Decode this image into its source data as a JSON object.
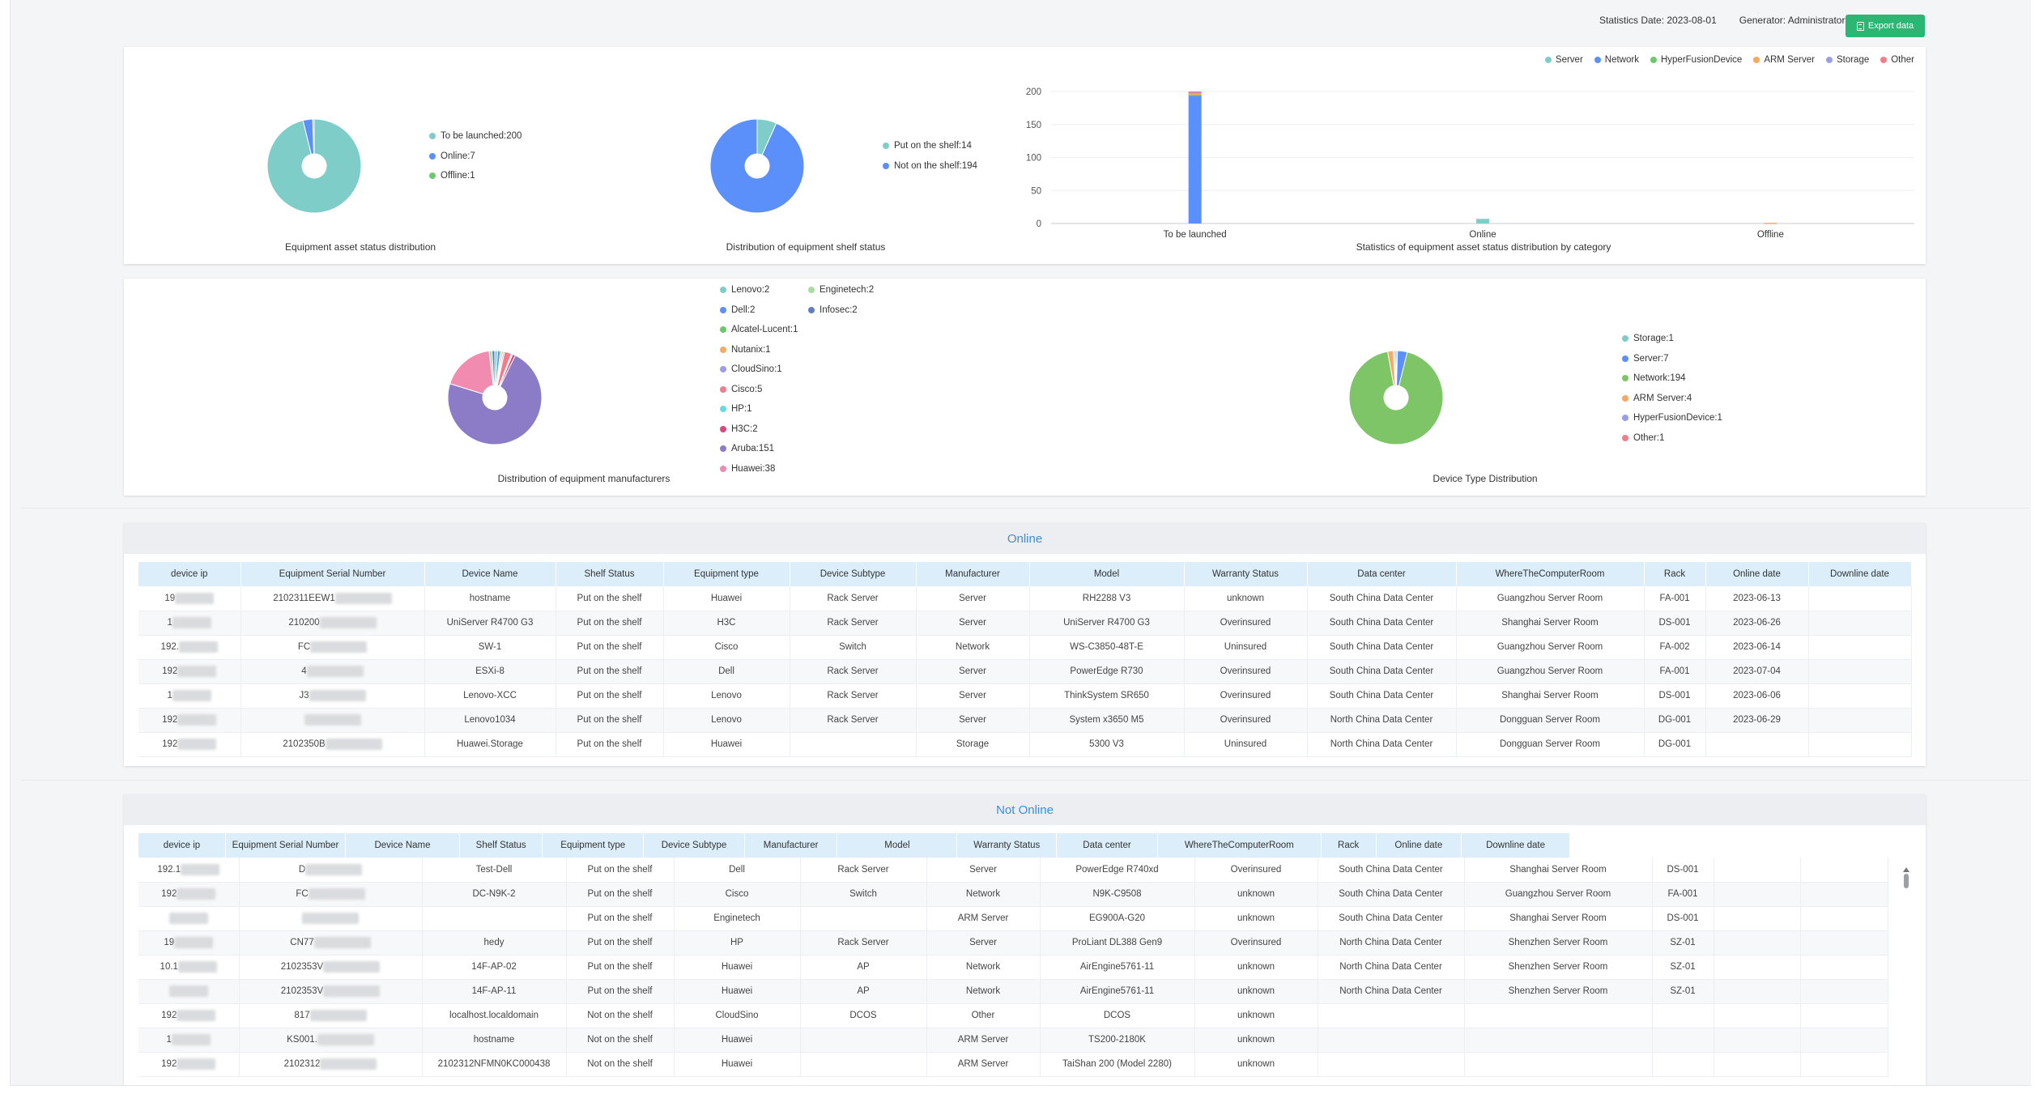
{
  "header": {
    "statistics_date": "Statistics Date: 2023-08-01",
    "generator": "Generator: Administrator",
    "export_label": "Export data"
  },
  "charts": {
    "asset_status": {
      "caption": "Equipment asset status distribution",
      "legend": [
        "To be launched:200",
        "Online:7",
        "Offline:1"
      ]
    },
    "shelf_status": {
      "caption": "Distribution of equipment shelf status",
      "legend": [
        "Put on the shelf:14",
        "Not on the shelf:194"
      ]
    },
    "category_bar": {
      "caption": "Statistics of equipment asset status distribution by category",
      "legend": [
        "Server",
        "Network",
        "HyperFusionDevice",
        "ARM Server",
        "Storage",
        "Other"
      ],
      "y_ticks": [
        "200",
        "150",
        "100",
        "50",
        "0"
      ],
      "x_labels": [
        "To be launched",
        "Online",
        "Offline"
      ]
    },
    "manufacturers": {
      "caption": "Distribution of equipment manufacturers",
      "legend_col1": [
        "Lenovo:2",
        "Dell:2",
        "Alcatel-Lucent:1",
        "Nutanix:1",
        "CloudSino:1",
        "Cisco:5",
        "HP:1",
        "H3C:2",
        "Aruba:151",
        "Huawei:38"
      ],
      "legend_col2": [
        "Enginetech:2",
        "Infosec:2"
      ]
    },
    "device_type": {
      "caption": "Device Type Distribution",
      "legend": [
        "Storage:1",
        "Server:7",
        "Network:194",
        "ARM Server:4",
        "HyperFusionDevice:1",
        "Other:1"
      ]
    }
  },
  "chart_data": [
    {
      "type": "pie",
      "title": "Equipment asset status distribution",
      "categories": [
        "To be launched",
        "Online",
        "Offline"
      ],
      "values": [
        200,
        7,
        1
      ],
      "colors": [
        "#7fcdc8",
        "#5b8ff9",
        "#6dc86d"
      ]
    },
    {
      "type": "pie",
      "title": "Distribution of equipment shelf status",
      "categories": [
        "Put on the shelf",
        "Not on the shelf"
      ],
      "values": [
        14,
        194
      ],
      "colors": [
        "#7fcdc8",
        "#5b8ff9"
      ]
    },
    {
      "type": "bar",
      "title": "Statistics of equipment asset status distribution by category",
      "categories": [
        "To be launched",
        "Online",
        "Offline"
      ],
      "ylim": [
        0,
        200
      ],
      "stacked": true,
      "legend_position": "top-right",
      "series": [
        {
          "name": "Server",
          "values": [
            0,
            7,
            0
          ],
          "color": "#7fcdc8"
        },
        {
          "name": "Network",
          "values": [
            194,
            0,
            0
          ],
          "color": "#5b8ff9"
        },
        {
          "name": "HyperFusionDevice",
          "values": [
            1,
            0,
            0
          ],
          "color": "#6dc86d"
        },
        {
          "name": "ARM Server",
          "values": [
            3,
            0,
            1
          ],
          "color": "#f5a962"
        },
        {
          "name": "Storage",
          "values": [
            1,
            0,
            0
          ],
          "color": "#9a9ee8"
        },
        {
          "name": "Other",
          "values": [
            1,
            0,
            0
          ],
          "color": "#f27c8a"
        }
      ]
    },
    {
      "type": "pie",
      "title": "Distribution of equipment manufacturers",
      "categories": [
        "Lenovo",
        "Dell",
        "Alcatel-Lucent",
        "Nutanix",
        "CloudSino",
        "Cisco",
        "HP",
        "H3C",
        "Aruba",
        "Huawei",
        "Enginetech",
        "Infosec"
      ],
      "values": [
        2,
        2,
        1,
        1,
        1,
        5,
        1,
        2,
        151,
        38,
        2,
        2
      ],
      "colors": [
        "#7fcdc8",
        "#5b8ff9",
        "#6dc86d",
        "#f5a962",
        "#9a9ee8",
        "#f27c8a",
        "#66d9e8",
        "#e0457b",
        "#8c7cc8",
        "#f28bb0",
        "#a8dca0",
        "#5f7fbf"
      ]
    },
    {
      "type": "pie",
      "title": "Device Type Distribution",
      "categories": [
        "Storage",
        "Server",
        "Network",
        "ARM Server",
        "HyperFusionDevice",
        "Other"
      ],
      "values": [
        1,
        7,
        194,
        4,
        1,
        1
      ],
      "colors": [
        "#7fcdc8",
        "#5b8ff9",
        "#7dc567",
        "#f5a962",
        "#9a9ee8",
        "#f27c8a"
      ]
    }
  ],
  "online_table": {
    "title": "Online",
    "columns": [
      "device ip",
      "Equipment Serial Number",
      "Device Name",
      "Shelf Status",
      "Equipment type",
      "Device Subtype",
      "Manufacturer",
      "Model",
      "Warranty Status",
      "Data center",
      "WhereTheComputerRoom",
      "Rack",
      "Online date",
      "Downline date"
    ],
    "rows": [
      [
        "19",
        "2102311EEW1",
        "hostname",
        "Put on the shelf",
        "Huawei",
        "Rack Server",
        "Server",
        "RH2288 V3",
        "unknown",
        "South China Data Center",
        "Guangzhou Server Room",
        "FA-001",
        "2023-06-13",
        ""
      ],
      [
        "1",
        "210200",
        "UniServer R4700 G3",
        "Put on the shelf",
        "H3C",
        "Rack Server",
        "Server",
        "UniServer R4700 G3",
        "Overinsured",
        "South China Data Center",
        "Shanghai Server Room",
        "DS-001",
        "2023-06-26",
        ""
      ],
      [
        "192.",
        "FC",
        "SW-1",
        "Put on the shelf",
        "Cisco",
        "Switch",
        "Network",
        "WS-C3850-48T-E",
        "Uninsured",
        "South China Data Center",
        "Guangzhou Server Room",
        "FA-002",
        "2023-06-14",
        ""
      ],
      [
        "192",
        "4",
        "ESXi-8",
        "Put on the shelf",
        "Dell",
        "Rack Server",
        "Server",
        "PowerEdge R730",
        "Overinsured",
        "South China Data Center",
        "Guangzhou Server Room",
        "FA-001",
        "2023-07-04",
        ""
      ],
      [
        "1",
        "J3",
        "Lenovo-XCC",
        "Put on the shelf",
        "Lenovo",
        "Rack Server",
        "Server",
        "ThinkSystem SR650",
        "Overinsured",
        "South China Data Center",
        "Shanghai Server Room",
        "DS-001",
        "2023-06-06",
        ""
      ],
      [
        "192",
        "",
        "Lenovo1034",
        "Put on the shelf",
        "Lenovo",
        "Rack Server",
        "Server",
        "System x3650 M5",
        "Overinsured",
        "North China Data Center",
        "Dongguan Server Room",
        "DG-001",
        "2023-06-29",
        ""
      ],
      [
        "192",
        "2102350B",
        "Huawei.Storage",
        "Put on the shelf",
        "Huawei",
        "",
        "Storage",
        "5300 V3",
        "Uninsured",
        "North China Data Center",
        "Dongguan Server Room",
        "DG-001",
        "",
        ""
      ]
    ]
  },
  "offline_table": {
    "title": "Not Online",
    "columns": [
      "device ip",
      "Equipment Serial Number",
      "Device Name",
      "Shelf Status",
      "Equipment type",
      "Device Subtype",
      "Manufacturer",
      "Model",
      "Warranty Status",
      "Data center",
      "WhereTheComputerRoom",
      "Rack",
      "Online date",
      "Downline date"
    ],
    "rows": [
      [
        "192.1",
        "D",
        "Test-Dell",
        "Put on the shelf",
        "Dell",
        "Rack Server",
        "Server",
        "PowerEdge R740xd",
        "Overinsured",
        "South China Data Center",
        "Shanghai Server Room",
        "DS-001",
        "",
        ""
      ],
      [
        "192",
        "FC",
        "DC-N9K-2",
        "Put on the shelf",
        "Cisco",
        "Switch",
        "Network",
        "N9K-C9508",
        "unknown",
        "South China Data Center",
        "Guangzhou Server Room",
        "FA-001",
        "",
        ""
      ],
      [
        "",
        "",
        "",
        "Put on the shelf",
        "Enginetech",
        "",
        "ARM Server",
        "EG900A-G20",
        "unknown",
        "South China Data Center",
        "Shanghai Server Room",
        "DS-001",
        "",
        ""
      ],
      [
        "19",
        "CN77",
        "hedy",
        "Put on the shelf",
        "HP",
        "Rack Server",
        "Server",
        "ProLiant DL388 Gen9",
        "Overinsured",
        "North China Data Center",
        "Shenzhen Server Room",
        "SZ-01",
        "",
        ""
      ],
      [
        "10.1",
        "2102353V",
        "14F-AP-02",
        "Put on the shelf",
        "Huawei",
        "AP",
        "Network",
        "AirEngine5761-11",
        "unknown",
        "North China Data Center",
        "Shenzhen Server Room",
        "SZ-01",
        "",
        ""
      ],
      [
        "",
        "2102353V",
        "14F-AP-11",
        "Put on the shelf",
        "Huawei",
        "AP",
        "Network",
        "AirEngine5761-11",
        "unknown",
        "North China Data Center",
        "Shenzhen Server Room",
        "SZ-01",
        "",
        ""
      ],
      [
        "192",
        "817",
        "localhost.localdomain",
        "Not on the shelf",
        "CloudSino",
        "DCOS",
        "Other",
        "DCOS",
        "unknown",
        "",
        "",
        "",
        "",
        ""
      ],
      [
        "1",
        "KS001.",
        "hostname",
        "Not on the shelf",
        "Huawei",
        "",
        "ARM Server",
        "TS200-2180K",
        "unknown",
        "",
        "",
        "",
        "",
        ""
      ],
      [
        "192",
        "2102312",
        "2102312NFMN0KC000438",
        "Not on the shelf",
        "Huawei",
        "",
        "ARM Server",
        "TaiShan 200 (Model 2280)",
        "unknown",
        "",
        "",
        "",
        "",
        ""
      ]
    ]
  }
}
